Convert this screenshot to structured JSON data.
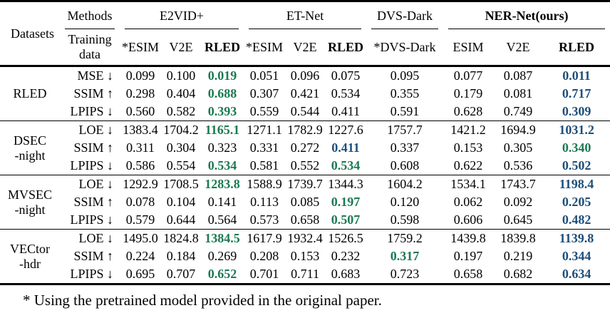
{
  "colors": {
    "best": "#1f4e79",
    "second_best": "#1b7a52",
    "text": "#000000",
    "rule": "#000000"
  },
  "footnote": "* Using the pretrained model provided in the original paper.",
  "table": {
    "datasets_header": "Datasets",
    "methods_header": "Methods",
    "training_data_header": "Training data",
    "groups": [
      {
        "label": "E2VID+",
        "bold": false,
        "cols": [
          {
            "label": "*ESIM",
            "bold": false
          },
          {
            "label": "V2E",
            "bold": false
          },
          {
            "label": "RLED",
            "bold": true
          }
        ]
      },
      {
        "label": "ET-Net",
        "bold": false,
        "cols": [
          {
            "label": "*ESIM",
            "bold": false
          },
          {
            "label": "V2E",
            "bold": false
          },
          {
            "label": "RLED",
            "bold": true
          }
        ]
      },
      {
        "label": "DVS-Dark",
        "bold": false,
        "cols": [
          {
            "label": "*DVS-Dark",
            "bold": false
          }
        ]
      },
      {
        "label": "NER-Net(ours)",
        "bold": true,
        "cols": [
          {
            "label": "ESIM",
            "bold": false
          },
          {
            "label": "V2E",
            "bold": false
          },
          {
            "label": "RLED",
            "bold": true
          }
        ]
      }
    ],
    "row_groups": [
      {
        "id": "rled",
        "label_lines": [
          "RLED"
        ],
        "rows": [
          {
            "metric": "MSE ↓",
            "values": [
              "0.099",
              "0.100",
              "0.019",
              "0.051",
              "0.096",
              "0.075",
              "0.095",
              "0.077",
              "0.087",
              "0.011"
            ],
            "best": 9,
            "second": [
              2
            ]
          },
          {
            "metric": "SSIM ↑",
            "values": [
              "0.298",
              "0.404",
              "0.688",
              "0.307",
              "0.421",
              "0.534",
              "0.355",
              "0.179",
              "0.081",
              "0.717"
            ],
            "best": 9,
            "second": [
              2
            ]
          },
          {
            "metric": "LPIPS ↓",
            "values": [
              "0.560",
              "0.582",
              "0.393",
              "0.559",
              "0.544",
              "0.411",
              "0.591",
              "0.628",
              "0.749",
              "0.309"
            ],
            "best": 9,
            "second": [
              2
            ]
          }
        ]
      },
      {
        "id": "dsec-night",
        "label_lines": [
          "DSEC",
          "-night"
        ],
        "rows": [
          {
            "metric": "LOE ↓",
            "values": [
              "1383.4",
              "1704.2",
              "1165.1",
              "1271.1",
              "1782.9",
              "1227.6",
              "1757.7",
              "1421.2",
              "1694.9",
              "1031.2"
            ],
            "best": 9,
            "second": [
              2
            ]
          },
          {
            "metric": "SSIM ↑",
            "values": [
              "0.311",
              "0.304",
              "0.323",
              "0.331",
              "0.272",
              "0.411",
              "0.337",
              "0.153",
              "0.305",
              "0.340"
            ],
            "best": 5,
            "second": [
              9
            ]
          },
          {
            "metric": "LPIPS ↓",
            "values": [
              "0.586",
              "0.554",
              "0.534",
              "0.581",
              "0.552",
              "0.534",
              "0.608",
              "0.622",
              "0.536",
              "0.502"
            ],
            "best": 9,
            "second": [
              2,
              5
            ]
          }
        ]
      },
      {
        "id": "mvsec-night",
        "label_lines": [
          "MVSEC",
          "-night"
        ],
        "rows": [
          {
            "metric": "LOE ↓",
            "values": [
              "1292.9",
              "1708.5",
              "1283.8",
              "1588.9",
              "1739.7",
              "1344.3",
              "1604.2",
              "1534.1",
              "1743.7",
              "1198.4"
            ],
            "best": 9,
            "second": [
              2
            ]
          },
          {
            "metric": "SSIM ↑",
            "values": [
              "0.078",
              "0.104",
              "0.141",
              "0.113",
              "0.085",
              "0.197",
              "0.120",
              "0.062",
              "0.092",
              "0.205"
            ],
            "best": 9,
            "second": [
              5
            ]
          },
          {
            "metric": "LPIPS ↓",
            "values": [
              "0.579",
              "0.644",
              "0.564",
              "0.573",
              "0.658",
              "0.507",
              "0.598",
              "0.606",
              "0.645",
              "0.482"
            ],
            "best": 9,
            "second": [
              5
            ]
          }
        ]
      },
      {
        "id": "vector-hdr",
        "label_lines": [
          "VECtor",
          "-hdr"
        ],
        "rows": [
          {
            "metric": "LOE ↓",
            "values": [
              "1495.0",
              "1824.8",
              "1384.5",
              "1617.9",
              "1932.4",
              "1526.5",
              "1759.2",
              "1439.8",
              "1839.8",
              "1139.8"
            ],
            "best": 9,
            "second": [
              2
            ]
          },
          {
            "metric": "SSIM ↑",
            "values": [
              "0.224",
              "0.184",
              "0.269",
              "0.208",
              "0.153",
              "0.232",
              "0.317",
              "0.197",
              "0.219",
              "0.344"
            ],
            "best": 9,
            "second": [
              6
            ]
          },
          {
            "metric": "LPIPS ↓",
            "values": [
              "0.695",
              "0.707",
              "0.652",
              "0.701",
              "0.711",
              "0.683",
              "0.723",
              "0.658",
              "0.682",
              "0.634"
            ],
            "best": 9,
            "second": [
              2
            ]
          }
        ]
      }
    ]
  }
}
